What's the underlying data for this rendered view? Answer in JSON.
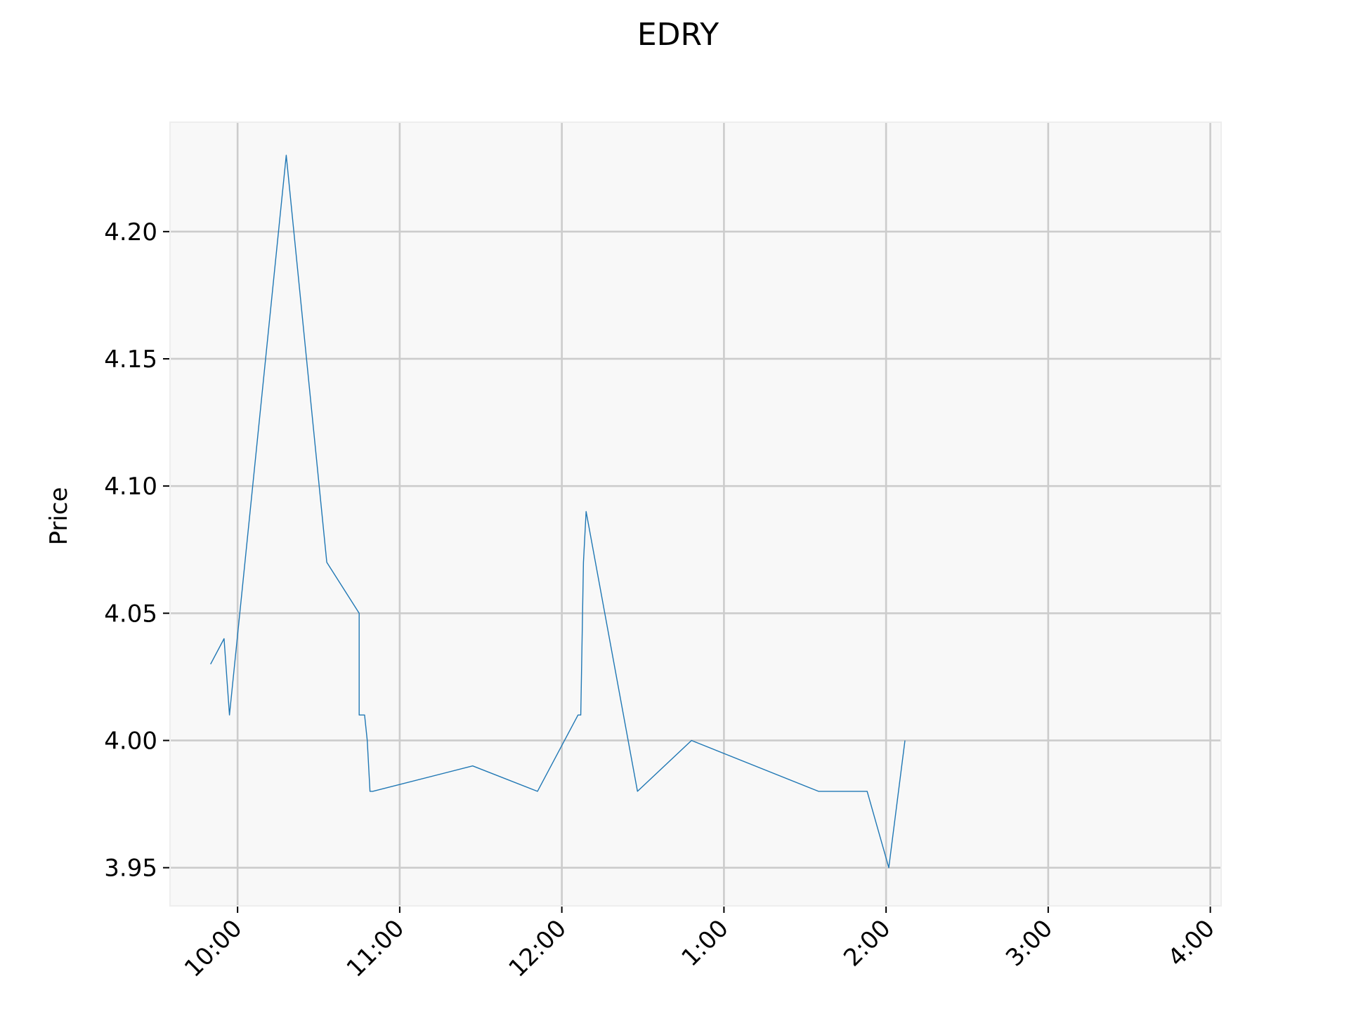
{
  "chart_data": {
    "type": "line",
    "title": "EDRY",
    "xlabel": "",
    "ylabel": "Price",
    "grid": true,
    "legend": false,
    "xlim": [
      "09:35",
      "16:04"
    ],
    "ylim": [
      3.935,
      4.243
    ],
    "x_ticks": [
      "10:00",
      "11:00",
      "12:00",
      "1:00",
      "2:00",
      "3:00",
      "4:00"
    ],
    "y_ticks": [
      "3.95",
      "4.00",
      "4.05",
      "4.10",
      "4.15",
      "4.20"
    ],
    "series": [
      {
        "color": "#1f77b4",
        "x": [
          "09:50",
          "09:55",
          "09:57",
          "10:18",
          "10:33",
          "10:45",
          "10:45",
          "10:47",
          "10:48",
          "10:49",
          "10:50",
          "11:27",
          "11:51",
          "12:06",
          "12:07",
          "12:08",
          "12:09",
          "12:28",
          "12:48",
          "13:35",
          "13:53",
          "14:01",
          "14:07"
        ],
        "y": [
          4.03,
          4.04,
          4.01,
          4.23,
          4.07,
          4.05,
          4.01,
          4.01,
          4.0,
          3.98,
          3.98,
          3.99,
          3.98,
          4.01,
          4.01,
          4.07,
          4.09,
          3.98,
          4.0,
          3.98,
          3.98,
          3.95,
          4.0
        ]
      }
    ]
  }
}
